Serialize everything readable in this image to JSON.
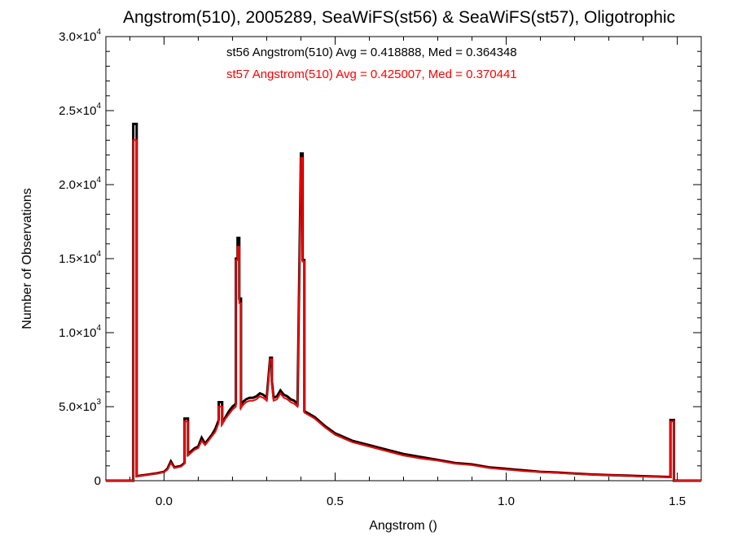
{
  "chart_data": {
    "type": "line",
    "title": "Angstrom(510), 2005289, SeaWiFS(st56) & SeaWiFS(st57), Oligotrophic",
    "xlabel": "Angstrom ()",
    "ylabel": "Number of Observations",
    "xlim": [
      -0.17,
      1.57
    ],
    "ylim": [
      0,
      30000
    ],
    "xticks": [
      0.0,
      0.5,
      1.0,
      1.5
    ],
    "xtick_labels": [
      "0.0",
      "0.5",
      "1.0",
      "1.5"
    ],
    "yticks": [
      0,
      5000,
      10000,
      15000,
      20000,
      25000,
      30000
    ],
    "ytick_labels": [
      {
        "m": "0",
        "e": ""
      },
      {
        "m": "5.0×10",
        "e": "3"
      },
      {
        "m": "1.0×10",
        "e": "4"
      },
      {
        "m": "1.5×10",
        "e": "4"
      },
      {
        "m": "2.0×10",
        "e": "4"
      },
      {
        "m": "2.5×10",
        "e": "4"
      },
      {
        "m": "3.0×10",
        "e": "4"
      }
    ],
    "grid": false,
    "annotations": [
      {
        "text": "st56 Angstrom(510) Avg = 0.418888, Med = 0.364348",
        "color": "#000000"
      },
      {
        "text": "st57 Angstrom(510) Avg = 0.425007, Med = 0.370441",
        "color": "#ff0000"
      }
    ],
    "series": [
      {
        "color": "#000000",
        "points": [
          [
            -0.17,
            0
          ],
          [
            -0.09,
            0
          ],
          [
            -0.09,
            24100
          ],
          [
            -0.08,
            24100
          ],
          [
            -0.08,
            300
          ],
          [
            -0.05,
            400
          ],
          [
            -0.02,
            500
          ],
          [
            0.0,
            600
          ],
          [
            0.01,
            800
          ],
          [
            0.02,
            1300
          ],
          [
            0.03,
            900
          ],
          [
            0.05,
            1000
          ],
          [
            0.06,
            1200
          ],
          [
            0.06,
            4200
          ],
          [
            0.07,
            4200
          ],
          [
            0.07,
            1800
          ],
          [
            0.08,
            2000
          ],
          [
            0.09,
            2200
          ],
          [
            0.1,
            2300
          ],
          [
            0.11,
            2900
          ],
          [
            0.12,
            2500
          ],
          [
            0.13,
            2800
          ],
          [
            0.14,
            3100
          ],
          [
            0.15,
            3500
          ],
          [
            0.16,
            4100
          ],
          [
            0.16,
            5300
          ],
          [
            0.17,
            5300
          ],
          [
            0.17,
            3900
          ],
          [
            0.18,
            4300
          ],
          [
            0.19,
            4700
          ],
          [
            0.2,
            5000
          ],
          [
            0.21,
            5200
          ],
          [
            0.21,
            15000
          ],
          [
            0.215,
            15000
          ],
          [
            0.215,
            16400
          ],
          [
            0.22,
            16400
          ],
          [
            0.22,
            12300
          ],
          [
            0.225,
            12300
          ],
          [
            0.225,
            5100
          ],
          [
            0.23,
            5300
          ],
          [
            0.24,
            5500
          ],
          [
            0.25,
            5600
          ],
          [
            0.26,
            5600
          ],
          [
            0.27,
            5700
          ],
          [
            0.28,
            5900
          ],
          [
            0.29,
            5800
          ],
          [
            0.3,
            5600
          ],
          [
            0.31,
            8300
          ],
          [
            0.315,
            8300
          ],
          [
            0.315,
            6700
          ],
          [
            0.32,
            5600
          ],
          [
            0.33,
            5700
          ],
          [
            0.34,
            6100
          ],
          [
            0.35,
            5800
          ],
          [
            0.36,
            5700
          ],
          [
            0.37,
            5500
          ],
          [
            0.38,
            5400
          ],
          [
            0.39,
            5200
          ],
          [
            0.4,
            22100
          ],
          [
            0.405,
            22100
          ],
          [
            0.405,
            14900
          ],
          [
            0.41,
            14900
          ],
          [
            0.41,
            4700
          ],
          [
            0.44,
            4300
          ],
          [
            0.47,
            3700
          ],
          [
            0.5,
            3200
          ],
          [
            0.55,
            2700
          ],
          [
            0.6,
            2400
          ],
          [
            0.65,
            2100
          ],
          [
            0.7,
            1800
          ],
          [
            0.75,
            1600
          ],
          [
            0.8,
            1400
          ],
          [
            0.85,
            1200
          ],
          [
            0.9,
            1100
          ],
          [
            0.95,
            900
          ],
          [
            1.0,
            800
          ],
          [
            1.05,
            700
          ],
          [
            1.1,
            600
          ],
          [
            1.15,
            550
          ],
          [
            1.2,
            480
          ],
          [
            1.25,
            420
          ],
          [
            1.3,
            380
          ],
          [
            1.35,
            340
          ],
          [
            1.4,
            300
          ],
          [
            1.45,
            270
          ],
          [
            1.48,
            250
          ],
          [
            1.48,
            4100
          ],
          [
            1.49,
            4100
          ],
          [
            1.49,
            0
          ],
          [
            1.57,
            0
          ]
        ]
      },
      {
        "color": "#ff0000",
        "points": [
          [
            -0.17,
            0
          ],
          [
            -0.09,
            0
          ],
          [
            -0.09,
            23000
          ],
          [
            -0.08,
            23000
          ],
          [
            -0.08,
            280
          ],
          [
            -0.05,
            380
          ],
          [
            -0.02,
            480
          ],
          [
            0.0,
            580
          ],
          [
            0.01,
            750
          ],
          [
            0.02,
            1200
          ],
          [
            0.03,
            850
          ],
          [
            0.05,
            950
          ],
          [
            0.06,
            1150
          ],
          [
            0.06,
            4000
          ],
          [
            0.07,
            4000
          ],
          [
            0.07,
            1700
          ],
          [
            0.08,
            1900
          ],
          [
            0.09,
            2100
          ],
          [
            0.1,
            2200
          ],
          [
            0.11,
            2700
          ],
          [
            0.12,
            2400
          ],
          [
            0.13,
            2700
          ],
          [
            0.14,
            3000
          ],
          [
            0.15,
            3300
          ],
          [
            0.16,
            3900
          ],
          [
            0.16,
            5000
          ],
          [
            0.17,
            5000
          ],
          [
            0.17,
            3800
          ],
          [
            0.18,
            4200
          ],
          [
            0.19,
            4500
          ],
          [
            0.2,
            4800
          ],
          [
            0.21,
            5000
          ],
          [
            0.21,
            14900
          ],
          [
            0.215,
            14900
          ],
          [
            0.215,
            15800
          ],
          [
            0.22,
            15800
          ],
          [
            0.22,
            12000
          ],
          [
            0.225,
            12000
          ],
          [
            0.225,
            4900
          ],
          [
            0.23,
            5100
          ],
          [
            0.24,
            5300
          ],
          [
            0.25,
            5400
          ],
          [
            0.26,
            5400
          ],
          [
            0.27,
            5500
          ],
          [
            0.28,
            5700
          ],
          [
            0.29,
            5600
          ],
          [
            0.3,
            5400
          ],
          [
            0.31,
            8200
          ],
          [
            0.315,
            8200
          ],
          [
            0.315,
            6500
          ],
          [
            0.32,
            5400
          ],
          [
            0.33,
            5500
          ],
          [
            0.34,
            5900
          ],
          [
            0.35,
            5600
          ],
          [
            0.36,
            5500
          ],
          [
            0.37,
            5300
          ],
          [
            0.38,
            5200
          ],
          [
            0.39,
            5000
          ],
          [
            0.4,
            21800
          ],
          [
            0.405,
            21800
          ],
          [
            0.405,
            14800
          ],
          [
            0.41,
            14800
          ],
          [
            0.41,
            4600
          ],
          [
            0.44,
            4200
          ],
          [
            0.47,
            3600
          ],
          [
            0.5,
            3100
          ],
          [
            0.55,
            2600
          ],
          [
            0.6,
            2300
          ],
          [
            0.65,
            2000
          ],
          [
            0.7,
            1700
          ],
          [
            0.75,
            1500
          ],
          [
            0.8,
            1350
          ],
          [
            0.85,
            1150
          ],
          [
            0.9,
            1050
          ],
          [
            0.95,
            850
          ],
          [
            1.0,
            750
          ],
          [
            1.05,
            650
          ],
          [
            1.1,
            580
          ],
          [
            1.15,
            520
          ],
          [
            1.2,
            460
          ],
          [
            1.25,
            400
          ],
          [
            1.3,
            360
          ],
          [
            1.35,
            320
          ],
          [
            1.4,
            280
          ],
          [
            1.45,
            250
          ],
          [
            1.48,
            230
          ],
          [
            1.48,
            4000
          ],
          [
            1.49,
            4000
          ],
          [
            1.49,
            0
          ],
          [
            1.57,
            0
          ]
        ]
      }
    ]
  }
}
